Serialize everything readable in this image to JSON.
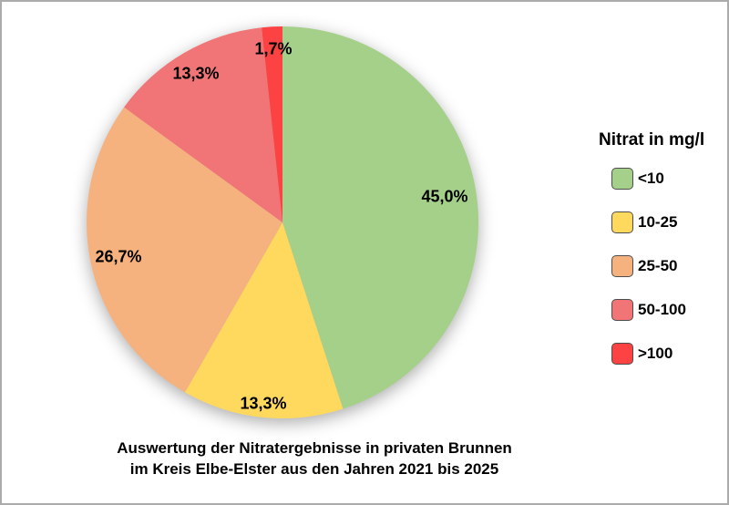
{
  "chart_data": {
    "type": "pie",
    "title": "Auswertung der Nitratergebnisse in privaten Brunnen im Kreis Elbe-Elster aus den Jahren 2021 bis 2025",
    "legend_title": "Nitrat in mg/l",
    "legend_position": "right",
    "units": "mg/l",
    "start_angle_deg": 0,
    "direction": "clockwise",
    "value_format": "german-decimal-comma-percent",
    "slices": [
      {
        "label": "<10",
        "value": 45.0,
        "display": "45,0%",
        "color": "#a5d08a"
      },
      {
        "label": "10-25",
        "value": 13.3,
        "display": "13,3%",
        "color": "#ffd95e"
      },
      {
        "label": "25-50",
        "value": 26.7,
        "display": "26,7%",
        "color": "#f5b17e"
      },
      {
        "label": "50-100",
        "value": 13.3,
        "display": "13,3%",
        "color": "#f17476"
      },
      {
        "label": ">100",
        "value": 1.7,
        "display": "1,7%",
        "color": "#fc4242"
      }
    ]
  },
  "caption": {
    "line1": "Auswertung der Nitratergebnisse in privaten Brunnen",
    "line2": "im Kreis Elbe-Elster aus den Jahren 2021 bis 2025"
  }
}
